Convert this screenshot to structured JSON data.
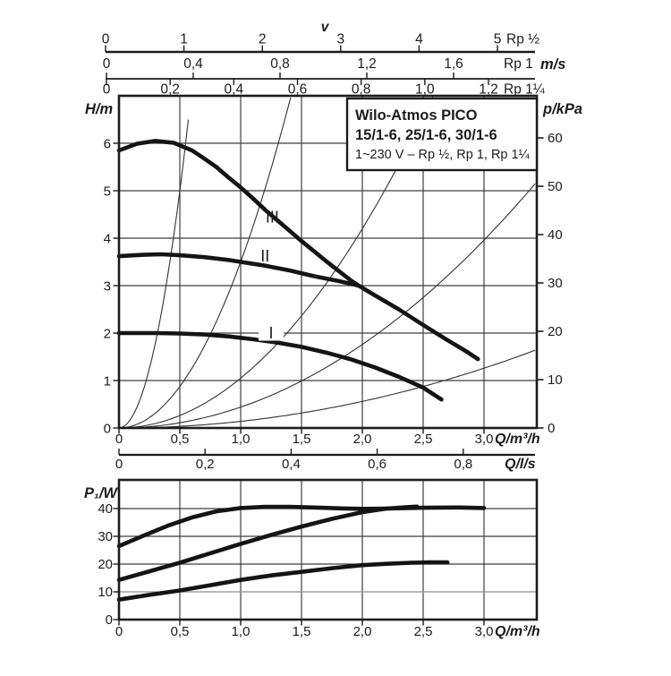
{
  "page": {
    "background": "#ffffff",
    "ink": "#1c1c1c",
    "curve_color": "#141414",
    "grid_color": "#3f3f3f",
    "thin_curve_color": "#333333",
    "light_grid_color": "#8f8f8f"
  },
  "velocity_rulers": {
    "axis_title": "v",
    "unit": "m/s",
    "scales": [
      {
        "pipe": "Rp ½",
        "tick_labels": [
          "0",
          "1",
          "2",
          "3",
          "4",
          "5"
        ],
        "tick_values": [
          0,
          1,
          2,
          3,
          4,
          5
        ],
        "max": 5
      },
      {
        "pipe": "Rp 1",
        "tick_labels": [
          "0",
          "0,4",
          "0,8",
          "1,2",
          "1,6"
        ],
        "tick_values": [
          0,
          0.4,
          0.8,
          1.2,
          1.6
        ],
        "max": 1.6
      },
      {
        "pipe": "Rp 1¼",
        "tick_labels": [
          "0",
          "0,2",
          "0,4",
          "0,6",
          "0,8",
          "1,0",
          "1,2"
        ],
        "tick_values": [
          0,
          0.2,
          0.4,
          0.6,
          0.8,
          1.0,
          1.2
        ],
        "max": 1.2
      }
    ]
  },
  "title_box": {
    "line1": "Wilo-Atmos PICO",
    "line2": "15/1-6, 25/1-6, 30/1-6",
    "line3": "1~230 V – Rp ½, Rp 1, Rp 1¼"
  },
  "chart_data": [
    {
      "type": "line",
      "name": "head-flow-curves",
      "title": "Wilo-Atmos PICO 15/1-6, 25/1-6, 30/1-6 pump curves",
      "xlabel": "Q/m³/h",
      "ylabel_left": "H/m",
      "ylabel_right": "p/kPa",
      "x2label": "Q/l/s",
      "xlim": [
        0,
        3.43
      ],
      "ylim_left": [
        0,
        7.0
      ],
      "ylim_right": [
        0,
        68.7
      ],
      "grid": true,
      "x_ticks": [
        0,
        0.5,
        1.0,
        1.5,
        2.0,
        2.5,
        3.0
      ],
      "x_tick_labels": [
        "0",
        "0,5",
        "1,0",
        "1,5",
        "2,0",
        "2,5",
        "3,0"
      ],
      "y_left_ticks": [
        0,
        1,
        2,
        3,
        4,
        5,
        6
      ],
      "y_left_tick_labels": [
        "0",
        "1",
        "2",
        "3",
        "4",
        "5",
        "6"
      ],
      "y_right_ticks": [
        0,
        10,
        20,
        30,
        40,
        50,
        60
      ],
      "y_right_tick_labels": [
        "0",
        "10",
        "20",
        "30",
        "40",
        "50",
        "60"
      ],
      "x2_ticks": [
        0,
        0.2,
        0.4,
        0.6,
        0.8
      ],
      "x2_tick_labels": [
        "0",
        "0,2",
        "0,4",
        "0,6",
        "0,8"
      ],
      "series": [
        {
          "name": "III",
          "points": [
            [
              0,
              5.85
            ],
            [
              0.15,
              5.99
            ],
            [
              0.3,
              6.05
            ],
            [
              0.45,
              6.01
            ],
            [
              0.6,
              5.85
            ],
            [
              0.7,
              5.68
            ],
            [
              0.8,
              5.5
            ],
            [
              0.9,
              5.28
            ],
            [
              1.0,
              5.07
            ],
            [
              1.1,
              4.84
            ],
            [
              1.2,
              4.6
            ],
            [
              1.3,
              4.38
            ],
            [
              1.4,
              4.16
            ],
            [
              1.5,
              3.94
            ],
            [
              1.6,
              3.73
            ],
            [
              1.7,
              3.52
            ],
            [
              1.8,
              3.32
            ],
            [
              1.9,
              3.12
            ],
            [
              1.97,
              3.0
            ],
            [
              2.1,
              2.8
            ],
            [
              2.3,
              2.5
            ],
            [
              2.5,
              2.17
            ],
            [
              2.7,
              1.85
            ],
            [
              2.85,
              1.62
            ],
            [
              2.95,
              1.45
            ]
          ]
        },
        {
          "name": "II",
          "points": [
            [
              0,
              3.62
            ],
            [
              0.2,
              3.65
            ],
            [
              0.35,
              3.66
            ],
            [
              0.5,
              3.64
            ],
            [
              0.7,
              3.6
            ],
            [
              0.9,
              3.54
            ],
            [
              1.0,
              3.5
            ],
            [
              1.2,
              3.42
            ],
            [
              1.4,
              3.32
            ],
            [
              1.6,
              3.2
            ],
            [
              1.8,
              3.1
            ],
            [
              1.97,
              3.0
            ]
          ]
        },
        {
          "name": "I",
          "points": [
            [
              0,
              2.0
            ],
            [
              0.3,
              2.0
            ],
            [
              0.5,
              1.99
            ],
            [
              0.7,
              1.97
            ],
            [
              0.9,
              1.93
            ],
            [
              1.1,
              1.87
            ],
            [
              1.3,
              1.8
            ],
            [
              1.5,
              1.71
            ],
            [
              1.7,
              1.59
            ],
            [
              1.9,
              1.45
            ],
            [
              2.1,
              1.28
            ],
            [
              2.3,
              1.08
            ],
            [
              2.5,
              0.85
            ],
            [
              2.65,
              0.6
            ]
          ]
        }
      ],
      "system_curves": {
        "formula": "H = k·Q²",
        "coefficients": [
          20,
          3.5,
          1.05,
          0.44,
          0.14
        ]
      },
      "curve_labels": [
        {
          "text": "III",
          "q": 1.26,
          "h": 4.44,
          "bg": false
        },
        {
          "text": "II",
          "q": 1.2,
          "h": 3.62,
          "bg": false
        },
        {
          "text": "I",
          "q": 1.25,
          "h": 2.0,
          "bg": true
        }
      ]
    },
    {
      "type": "line",
      "name": "power-flow-curves",
      "title": "Power consumption P1 vs flow",
      "xlabel": "Q/m³/h",
      "ylabel": "P₁/W",
      "xlim": [
        0,
        3.43
      ],
      "ylim": [
        0,
        50.3
      ],
      "grid": true,
      "x_ticks": [
        0,
        0.5,
        1.0,
        1.5,
        2.0,
        2.5,
        3.0
      ],
      "x_tick_labels": [
        "0",
        "0,5",
        "1,0",
        "1,5",
        "2,0",
        "2,5",
        "3,0"
      ],
      "y_ticks": [
        0,
        10,
        20,
        30,
        40
      ],
      "y_tick_labels": [
        "0",
        "10",
        "20",
        "30",
        "40"
      ],
      "gray_grid_ticks": [
        10
      ],
      "series": [
        {
          "name": "III",
          "points": [
            [
              0,
              26.5
            ],
            [
              0.2,
              30.2
            ],
            [
              0.4,
              33.8
            ],
            [
              0.6,
              36.8
            ],
            [
              0.8,
              39.0
            ],
            [
              1.0,
              40.2
            ],
            [
              1.2,
              40.6
            ],
            [
              1.4,
              40.6
            ],
            [
              1.6,
              40.4
            ],
            [
              1.8,
              40.1
            ],
            [
              2.0,
              39.9
            ],
            [
              2.2,
              40.0
            ],
            [
              2.5,
              40.3
            ],
            [
              2.8,
              40.4
            ],
            [
              3.0,
              40.2
            ]
          ]
        },
        {
          "name": "II",
          "points": [
            [
              0,
              14.3
            ],
            [
              0.25,
              17.4
            ],
            [
              0.5,
              20.5
            ],
            [
              0.75,
              23.9
            ],
            [
              1.0,
              27.3
            ],
            [
              1.25,
              30.5
            ],
            [
              1.5,
              33.5
            ],
            [
              1.75,
              36.3
            ],
            [
              2.0,
              38.7
            ],
            [
              2.2,
              40.0
            ],
            [
              2.35,
              40.5
            ],
            [
              2.45,
              40.7
            ]
          ]
        },
        {
          "name": "I",
          "points": [
            [
              0,
              7.2
            ],
            [
              0.25,
              8.9
            ],
            [
              0.5,
              10.5
            ],
            [
              0.75,
              12.4
            ],
            [
              1.0,
              14.3
            ],
            [
              1.25,
              15.9
            ],
            [
              1.5,
              17.2
            ],
            [
              1.75,
              18.5
            ],
            [
              2.0,
              19.6
            ],
            [
              2.2,
              20.1
            ],
            [
              2.4,
              20.5
            ],
            [
              2.55,
              20.6
            ],
            [
              2.7,
              20.6
            ]
          ]
        }
      ]
    }
  ]
}
